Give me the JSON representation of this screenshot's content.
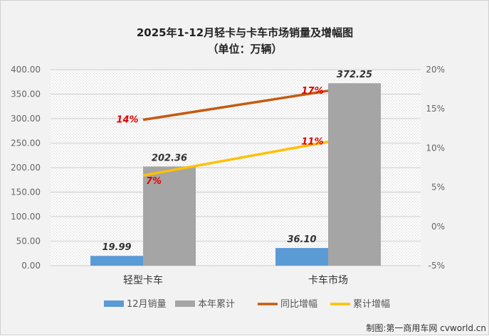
{
  "chart_data": {
    "type": "bar+line",
    "title": "2025年1-12月轻卡与卡车市场销量及增幅图",
    "subtitle": "（单位：万辆）",
    "categories": [
      "轻型卡车",
      "卡车市场"
    ],
    "left_axis": {
      "ylim": [
        0,
        400
      ],
      "ticks": [
        "0.00",
        "50.00",
        "100.00",
        "150.00",
        "200.00",
        "250.00",
        "300.00",
        "350.00",
        "400.00"
      ]
    },
    "right_axis": {
      "ylim": [
        -5,
        20
      ],
      "ticks": [
        "-5%",
        "0%",
        "5%",
        "10%",
        "15%",
        "20%"
      ]
    },
    "bar_series": [
      {
        "name": "12月销量",
        "values": [
          19.99,
          36.1
        ],
        "labels": [
          "19.99",
          "36.10"
        ],
        "color": "#5b9bd5"
      },
      {
        "name": "本年累计",
        "values": [
          202.36,
          372.25
        ],
        "labels": [
          "202.36",
          "372.25"
        ],
        "color": "#a5a5a5"
      }
    ],
    "line_series": [
      {
        "name": "同比增幅",
        "values": [
          13.6,
          17.3
        ],
        "labels": [
          "14%",
          "17%"
        ],
        "color": "#c55a11"
      },
      {
        "name": "累计增幅",
        "values": [
          6.5,
          10.8
        ],
        "labels": [
          "7%",
          "11%"
        ],
        "color": "#ffc000"
      }
    ],
    "grid": true,
    "legend": "bottom"
  },
  "credit": "制图:第一商用车网 cvworld.cn"
}
